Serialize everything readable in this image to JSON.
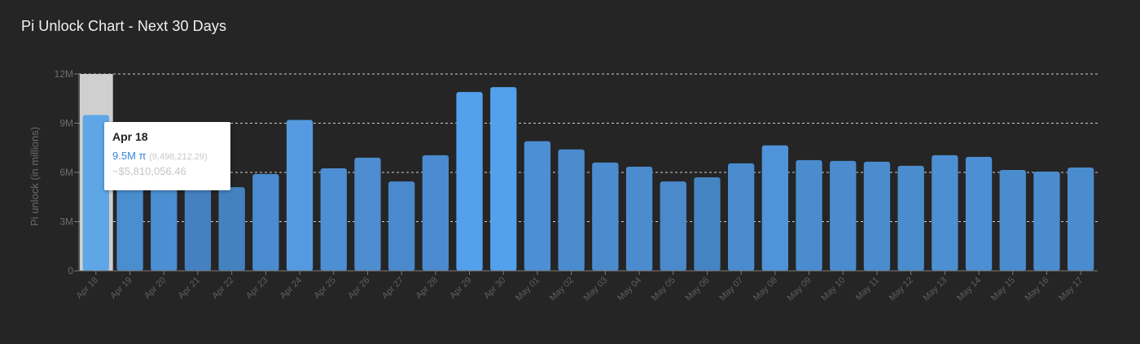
{
  "title": "Pi Unlock Chart - Next 30 Days",
  "chart_data": {
    "type": "bar",
    "ylabel": "Pi unlock (in millions)",
    "xlabel": "",
    "ylim": [
      0,
      12
    ],
    "yticks": [
      0,
      3,
      6,
      9,
      12
    ],
    "ytick_labels": [
      "0",
      "3M",
      "6M",
      "9M",
      "12M"
    ],
    "grid": true,
    "categories": [
      "Apr 18",
      "Apr 19",
      "Apr 20",
      "Apr 21",
      "Apr 22",
      "Apr 23",
      "Apr 24",
      "Apr 25",
      "Apr 26",
      "Apr 27",
      "Apr 28",
      "Apr 29",
      "Apr 30",
      "May 01",
      "May 02",
      "May 03",
      "May 04",
      "May 05",
      "May 06",
      "May 07",
      "May 08",
      "May 09",
      "May 10",
      "May 11",
      "May 12",
      "May 13",
      "May 14",
      "May 15",
      "May 16",
      "May 17"
    ],
    "values": [
      9.5,
      5.8,
      5.7,
      5.2,
      5.1,
      5.9,
      9.2,
      6.25,
      6.9,
      5.45,
      7.05,
      10.9,
      11.2,
      7.9,
      7.4,
      6.6,
      6.35,
      5.45,
      5.7,
      6.55,
      7.65,
      6.75,
      6.7,
      6.65,
      6.4,
      7.05,
      6.95,
      6.15,
      6.05,
      6.3
    ],
    "bar_colors": [
      "#5ea6e6",
      "#4a8ed0",
      "#4b8fd2",
      "#4580c0",
      "#4482bf",
      "#4b8bcf",
      "#559ae0",
      "#4d8fd3",
      "#4d8dd0",
      "#4a89cc",
      "#4c8bcf",
      "#53a0ec",
      "#53a0ec",
      "#4c8fd4",
      "#4b8ccf",
      "#4b8ccf",
      "#4b8ccf",
      "#4a89cc",
      "#4584c2",
      "#4b8ccf",
      "#4f93d8",
      "#4b8ccf",
      "#4b8ccf",
      "#4b8ccf",
      "#4b8ccf",
      "#4d8fd3",
      "#4d8fd3",
      "#4b8ccf",
      "#4b8ccf",
      "#4b8ccf"
    ],
    "highlight_index": 0,
    "tooltip": {
      "date": "Apr 18",
      "value_text": "9.5M π",
      "exact_text": "(9,498,212.29)",
      "usd_text": "~$5,810,056.46"
    }
  }
}
